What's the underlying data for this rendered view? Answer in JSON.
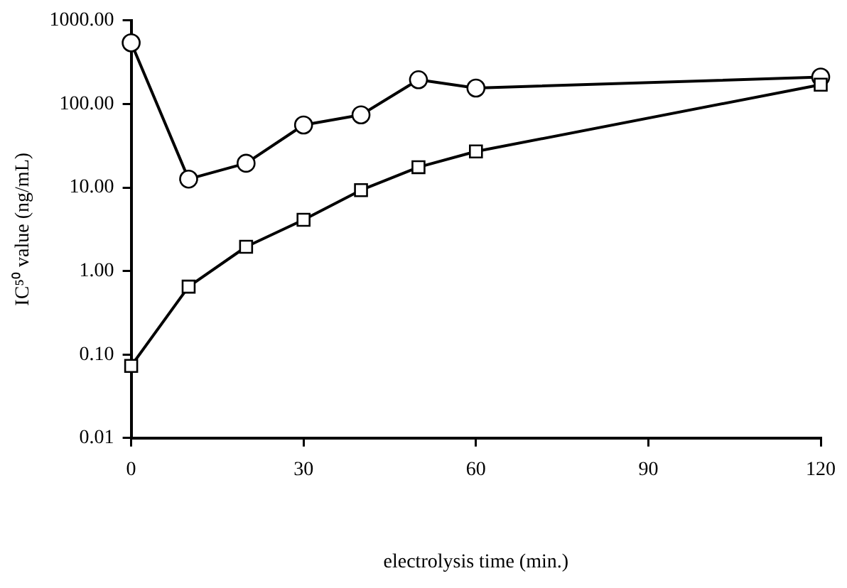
{
  "chart_data": {
    "type": "line",
    "xlabel": "electrolysis time (min.)",
    "ylabel": "IC⁵⁰ value (ng/mL)",
    "log": "y",
    "grid": false,
    "legend": false,
    "line_style": "solid",
    "xlim": [
      0,
      120
    ],
    "xticks": [
      0,
      30,
      60,
      90,
      120
    ],
    "ylim": [
      0.01,
      1000
    ],
    "yticks": [
      {
        "value": 0.01,
        "label": "0.01"
      },
      {
        "value": 0.1,
        "label": "0.10"
      },
      {
        "value": 1,
        "label": "1.00"
      },
      {
        "value": 10,
        "label": "10.00"
      },
      {
        "value": 100,
        "label": "100.00"
      },
      {
        "value": 1000,
        "label": "1000.00"
      }
    ],
    "x": [
      0,
      10,
      20,
      30,
      40,
      50,
      60,
      120
    ],
    "series": [
      {
        "color": "#000000",
        "marker": "circle",
        "values": [
          540,
          12.6,
          19.5,
          56,
          74,
          195,
          155,
          210
        ]
      },
      {
        "color": "#000000",
        "marker": "square",
        "values": [
          0.073,
          0.65,
          1.95,
          4.1,
          9.3,
          17.5,
          27,
          170
        ]
      }
    ]
  }
}
